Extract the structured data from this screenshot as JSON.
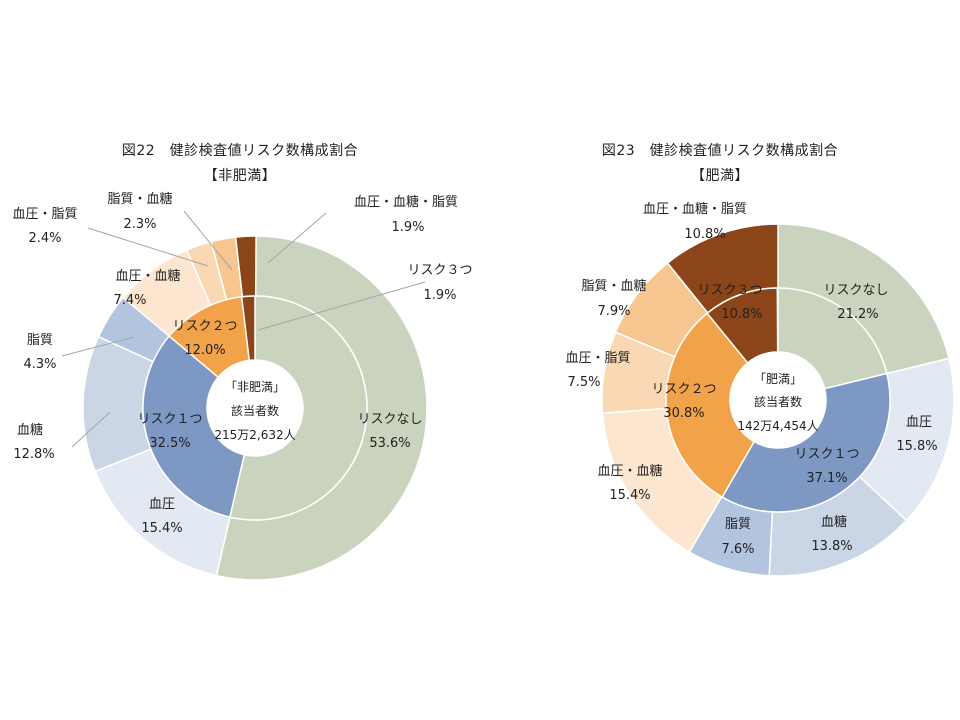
{
  "chart_data": [
    {
      "type": "pie",
      "subtype": "nested-donut",
      "title": "図22　健診検査値リスク数構成割合",
      "subtitle": "【非肥満】",
      "center_label": [
        "「非肥満」",
        "該当者数",
        "215万2,632人"
      ],
      "inner": [
        {
          "name": "リスクなし",
          "value": 53.6,
          "label": "53.6%",
          "color": "#c9d3bd",
          "text_color": "#222222"
        },
        {
          "name": "リスク１つ",
          "value": 32.5,
          "label": "32.5%",
          "color": "#7d98c2",
          "text_color": "#222222"
        },
        {
          "name": "リスク２つ",
          "value": 12.0,
          "label": "12.0%",
          "color": "#f2a349",
          "text_color": "#222222"
        },
        {
          "name": "リスク３つ",
          "value": 1.9,
          "label": "1.9%",
          "color": "#8b4518",
          "text_color": "#222222"
        }
      ],
      "outer": [
        {
          "name": "リスクなし",
          "value": 53.6,
          "color": "#c9d3bd"
        },
        {
          "name": "血圧",
          "value": 15.4,
          "label": "15.4%",
          "color": "#e3e9f3"
        },
        {
          "name": "血糖",
          "value": 12.8,
          "label": "12.8%",
          "color": "#cad6e6"
        },
        {
          "name": "脂質",
          "value": 4.3,
          "label": "4.3%",
          "color": "#b2c4de"
        },
        {
          "name": "血圧・血糖",
          "value": 7.4,
          "label": "7.4%",
          "color": "#fce6d0"
        },
        {
          "name": "血圧・脂質",
          "value": 2.4,
          "label": "2.4%",
          "color": "#f9d8b3"
        },
        {
          "name": "脂質・血糖",
          "value": 2.3,
          "label": "2.3%",
          "color": "#f6c590"
        },
        {
          "name": "血圧・血糖・脂質",
          "value": 1.9,
          "label": "1.9%",
          "color": "#8b4518"
        }
      ]
    },
    {
      "type": "pie",
      "subtype": "nested-donut",
      "title": "図23　健診検査値リスク数構成割合",
      "subtitle": "【肥満】",
      "center_label": [
        "「肥満」",
        "該当者数",
        "142万4,454人"
      ],
      "inner": [
        {
          "name": "リスクなし",
          "value": 21.2,
          "label": "21.2%",
          "color": "#c9d3bd",
          "text_color": "#222222"
        },
        {
          "name": "リスク１つ",
          "value": 37.1,
          "label": "37.1%",
          "color": "#7d98c2",
          "text_color": "#222222"
        },
        {
          "name": "リスク２つ",
          "value": 30.8,
          "label": "30.8%",
          "color": "#f2a349",
          "text_color": "#222222"
        },
        {
          "name": "リスク３つ",
          "value": 10.8,
          "label": "10.8%",
          "color": "#8b4518",
          "text_color": "#222222"
        }
      ],
      "outer": [
        {
          "name": "リスクなし",
          "value": 21.2,
          "color": "#c9d3bd"
        },
        {
          "name": "血圧",
          "value": 15.8,
          "label": "15.8%",
          "color": "#e3e9f3"
        },
        {
          "name": "血糖",
          "value": 13.8,
          "label": "13.8%",
          "color": "#cad6e6"
        },
        {
          "name": "脂質",
          "value": 7.6,
          "label": "7.6%",
          "color": "#b2c4de"
        },
        {
          "name": "血圧・血糖",
          "value": 15.4,
          "label": "15.4%",
          "color": "#fce6d0"
        },
        {
          "name": "血圧・脂質",
          "value": 7.5,
          "label": "7.5%",
          "color": "#f9d8b3"
        },
        {
          "name": "脂質・血糖",
          "value": 7.9,
          "label": "7.9%",
          "color": "#f6c590"
        },
        {
          "name": "血圧・血糖・脂質",
          "value": 10.8,
          "label": "10.8%",
          "color": "#8b4518"
        }
      ]
    }
  ]
}
